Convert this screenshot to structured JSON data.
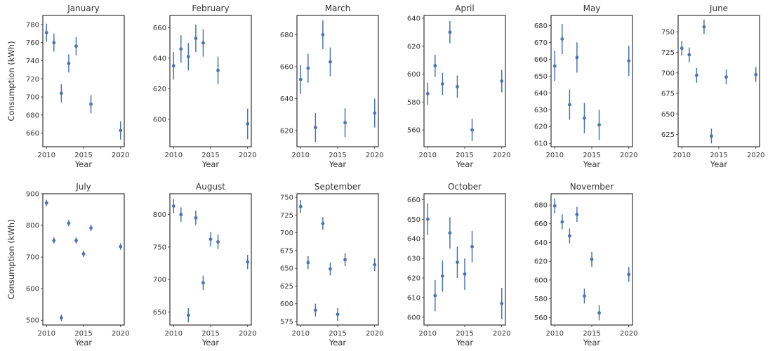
{
  "chart_data": {
    "type": "scatter",
    "error_bars": true,
    "shared_xlabel": "Year",
    "shared_ylabel": "Consumption (kWh)",
    "marker_color": "#4c72b0",
    "x_ticks": [
      2010,
      2015,
      2020
    ],
    "panels": [
      {
        "title": "January",
        "xlim": [
          2009.5,
          2020.5
        ],
        "ylim": [
          645,
          790
        ],
        "y_ticks": [
          660,
          680,
          700,
          720,
          740,
          760,
          780
        ],
        "points": [
          {
            "x": 2010,
            "y": 771,
            "err": 10
          },
          {
            "x": 2011,
            "y": 760,
            "err": 10
          },
          {
            "x": 2012,
            "y": 704,
            "err": 10
          },
          {
            "x": 2013,
            "y": 737,
            "err": 10
          },
          {
            "x": 2014,
            "y": 756,
            "err": 10
          },
          {
            "x": 2016,
            "y": 692,
            "err": 10
          },
          {
            "x": 2020,
            "y": 663,
            "err": 10
          }
        ]
      },
      {
        "title": "February",
        "xlim": [
          2009.5,
          2020.5
        ],
        "ylim": [
          582,
          668
        ],
        "y_ticks": [
          600,
          620,
          640,
          660
        ],
        "points": [
          {
            "x": 2010,
            "y": 635,
            "err": 9
          },
          {
            "x": 2011,
            "y": 646,
            "err": 9
          },
          {
            "x": 2012,
            "y": 641,
            "err": 9
          },
          {
            "x": 2013,
            "y": 653,
            "err": 9
          },
          {
            "x": 2014,
            "y": 650,
            "err": 9
          },
          {
            "x": 2016,
            "y": 632,
            "err": 9
          },
          {
            "x": 2020,
            "y": 597,
            "err": 10
          }
        ]
      },
      {
        "title": "March",
        "xlim": [
          2009.5,
          2020.5
        ],
        "ylim": [
          610,
          692
        ],
        "y_ticks": [
          620,
          640,
          660,
          680
        ],
        "points": [
          {
            "x": 2010,
            "y": 652,
            "err": 9
          },
          {
            "x": 2011,
            "y": 659,
            "err": 9
          },
          {
            "x": 2012,
            "y": 622,
            "err": 9
          },
          {
            "x": 2013,
            "y": 680,
            "err": 9
          },
          {
            "x": 2014,
            "y": 663,
            "err": 9
          },
          {
            "x": 2016,
            "y": 625,
            "err": 9
          },
          {
            "x": 2020,
            "y": 631,
            "err": 9
          }
        ]
      },
      {
        "title": "April",
        "xlim": [
          2009.5,
          2020.5
        ],
        "ylim": [
          548,
          642
        ],
        "y_ticks": [
          560,
          580,
          600,
          620,
          640
        ],
        "points": [
          {
            "x": 2010,
            "y": 586,
            "err": 8
          },
          {
            "x": 2011,
            "y": 606,
            "err": 8
          },
          {
            "x": 2012,
            "y": 593,
            "err": 8
          },
          {
            "x": 2013,
            "y": 630,
            "err": 8
          },
          {
            "x": 2014,
            "y": 591,
            "err": 8
          },
          {
            "x": 2016,
            "y": 560,
            "err": 8
          },
          {
            "x": 2020,
            "y": 595,
            "err": 8
          }
        ]
      },
      {
        "title": "May",
        "xlim": [
          2009.5,
          2020.5
        ],
        "ylim": [
          608,
          686
        ],
        "y_ticks": [
          610,
          620,
          630,
          640,
          650,
          660,
          670,
          680
        ],
        "points": [
          {
            "x": 2010,
            "y": 656,
            "err": 9
          },
          {
            "x": 2011,
            "y": 672,
            "err": 9
          },
          {
            "x": 2012,
            "y": 633,
            "err": 9
          },
          {
            "x": 2013,
            "y": 661,
            "err": 9
          },
          {
            "x": 2014,
            "y": 625,
            "err": 9
          },
          {
            "x": 2016,
            "y": 621,
            "err": 9
          },
          {
            "x": 2020,
            "y": 659,
            "err": 9
          }
        ]
      },
      {
        "title": "June",
        "xlim": [
          2009.5,
          2020.5
        ],
        "ylim": [
          610,
          770
        ],
        "y_ticks": [
          625,
          650,
          675,
          700,
          725,
          750
        ],
        "points": [
          {
            "x": 2010,
            "y": 730,
            "err": 9
          },
          {
            "x": 2011,
            "y": 722,
            "err": 9
          },
          {
            "x": 2012,
            "y": 697,
            "err": 9
          },
          {
            "x": 2013,
            "y": 756,
            "err": 9
          },
          {
            "x": 2014,
            "y": 623,
            "err": 9
          },
          {
            "x": 2016,
            "y": 695,
            "err": 9
          },
          {
            "x": 2020,
            "y": 698,
            "err": 9
          }
        ]
      },
      {
        "title": "July",
        "xlim": [
          2009.5,
          2020.5
        ],
        "ylim": [
          485,
          900
        ],
        "y_ticks": [
          500,
          600,
          700,
          800,
          900
        ],
        "points": [
          {
            "x": 2010,
            "y": 871,
            "err": 10
          },
          {
            "x": 2011,
            "y": 752,
            "err": 10
          },
          {
            "x": 2012,
            "y": 508,
            "err": 10
          },
          {
            "x": 2013,
            "y": 807,
            "err": 10
          },
          {
            "x": 2014,
            "y": 752,
            "err": 10
          },
          {
            "x": 2015,
            "y": 710,
            "err": 10
          },
          {
            "x": 2016,
            "y": 792,
            "err": 10
          },
          {
            "x": 2020,
            "y": 733,
            "err": 10
          }
        ]
      },
      {
        "title": "August",
        "xlim": [
          2009.5,
          2020.5
        ],
        "ylim": [
          630,
          832
        ],
        "y_ticks": [
          650,
          700,
          750,
          800
        ],
        "points": [
          {
            "x": 2010,
            "y": 813,
            "err": 11
          },
          {
            "x": 2011,
            "y": 800,
            "err": 11
          },
          {
            "x": 2012,
            "y": 645,
            "err": 11
          },
          {
            "x": 2013,
            "y": 795,
            "err": 11
          },
          {
            "x": 2014,
            "y": 695,
            "err": 11
          },
          {
            "x": 2015,
            "y": 762,
            "err": 11
          },
          {
            "x": 2016,
            "y": 758,
            "err": 11
          },
          {
            "x": 2020,
            "y": 727,
            "err": 11
          }
        ]
      },
      {
        "title": "September",
        "xlim": [
          2009.5,
          2020.5
        ],
        "ylim": [
          570,
          755
        ],
        "y_ticks": [
          575,
          600,
          625,
          650,
          675,
          700,
          725,
          750
        ],
        "points": [
          {
            "x": 2010,
            "y": 737,
            "err": 9
          },
          {
            "x": 2011,
            "y": 658,
            "err": 9
          },
          {
            "x": 2012,
            "y": 591,
            "err": 9
          },
          {
            "x": 2013,
            "y": 713,
            "err": 9
          },
          {
            "x": 2014,
            "y": 649,
            "err": 9
          },
          {
            "x": 2015,
            "y": 585,
            "err": 9
          },
          {
            "x": 2016,
            "y": 662,
            "err": 9
          },
          {
            "x": 2020,
            "y": 655,
            "err": 9
          }
        ]
      },
      {
        "title": "October",
        "xlim": [
          2009.5,
          2020.5
        ],
        "ylim": [
          596,
          663
        ],
        "y_ticks": [
          600,
          610,
          620,
          630,
          640,
          650,
          660
        ],
        "points": [
          {
            "x": 2010,
            "y": 650,
            "err": 8
          },
          {
            "x": 2011,
            "y": 611,
            "err": 8
          },
          {
            "x": 2012,
            "y": 621,
            "err": 8
          },
          {
            "x": 2013,
            "y": 643,
            "err": 8
          },
          {
            "x": 2014,
            "y": 628,
            "err": 8
          },
          {
            "x": 2015,
            "y": 622,
            "err": 8
          },
          {
            "x": 2016,
            "y": 636,
            "err": 8
          },
          {
            "x": 2020,
            "y": 607,
            "err": 8
          }
        ]
      },
      {
        "title": "November",
        "xlim": [
          2009.5,
          2020.5
        ],
        "ylim": [
          552,
          692
        ],
        "y_ticks": [
          560,
          580,
          600,
          620,
          640,
          660,
          680
        ],
        "points": [
          {
            "x": 2010,
            "y": 679,
            "err": 8
          },
          {
            "x": 2011,
            "y": 662,
            "err": 8
          },
          {
            "x": 2012,
            "y": 647,
            "err": 8
          },
          {
            "x": 2013,
            "y": 670,
            "err": 8
          },
          {
            "x": 2014,
            "y": 583,
            "err": 8
          },
          {
            "x": 2015,
            "y": 622,
            "err": 8
          },
          {
            "x": 2016,
            "y": 565,
            "err": 8
          },
          {
            "x": 2020,
            "y": 606,
            "err": 8
          }
        ]
      }
    ]
  }
}
